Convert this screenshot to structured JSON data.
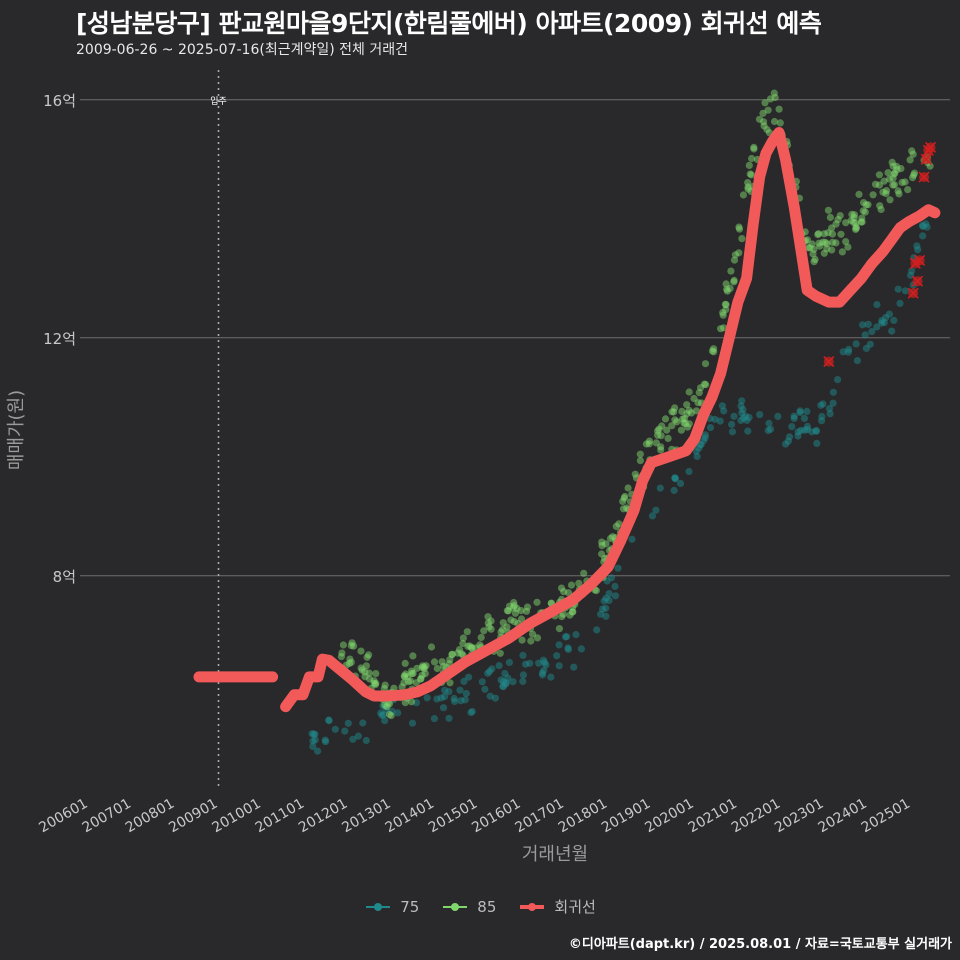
{
  "header": {
    "title": "[성남분당구] 판교원마을9단지(한림풀에버) 아파트(2009) 회귀선 예측",
    "subtitle": "2009-06-26 ~ 2025-07-16(최근계약일) 전체 거래건"
  },
  "footer": {
    "source": "©디아파트(dapt.kr) / 2025.08.01 / 자료=국토교통부 실거래가"
  },
  "colors": {
    "s75": "#1f8a8c",
    "s85": "#7fd66d",
    "regression": "#f25a5a",
    "cancelled": "#d11f1f",
    "grid": "#6e6e6e",
    "bg": "#29282a"
  },
  "chart_data": {
    "type": "scatter",
    "title": "[성남분당구] 판교원마을9단지(한림풀에버) 아파트(2009) 회귀선 예측",
    "xlabel": "거래년월",
    "ylabel": "매매가(원)",
    "xlim": [
      2005.8,
      2025.9
    ],
    "ylim": [
      4.4,
      16.5
    ],
    "x_ticks": [
      2006,
      2007,
      2008,
      2009,
      2010,
      2011,
      2012,
      2013,
      2014,
      2015,
      2016,
      2017,
      2018,
      2019,
      2020,
      2021,
      2022,
      2023,
      2024,
      2025
    ],
    "x_tick_labels": [
      "200601",
      "200701",
      "200801",
      "200901",
      "201001",
      "201101",
      "201201",
      "201301",
      "201401",
      "201501",
      "201601",
      "201701",
      "201801",
      "201901",
      "202001",
      "202101",
      "202201",
      "202301",
      "202401",
      "202501"
    ],
    "y_ticks": [
      8,
      12,
      16
    ],
    "y_tick_labels": [
      "8억",
      "12억",
      "16억"
    ],
    "annotation": {
      "label": "입주",
      "x": 2009.0
    },
    "legend": [
      "75",
      "85",
      "회귀선"
    ],
    "series": [
      {
        "name": "75",
        "anchors": [
          [
            2011.1,
            5.3
          ],
          [
            2012.8,
            5.6
          ],
          [
            2013.5,
            5.8
          ],
          [
            2014.5,
            5.95
          ],
          [
            2015.5,
            6.2
          ],
          [
            2016.5,
            6.55
          ],
          [
            2017.5,
            6.95
          ],
          [
            2017.95,
            7.45
          ],
          [
            2018.4,
            8.4
          ],
          [
            2019.0,
            9.0
          ],
          [
            2019.5,
            9.5
          ],
          [
            2020.0,
            10.0
          ],
          [
            2020.5,
            10.7
          ],
          [
            2022.9,
            10.5
          ],
          [
            2023.5,
            11.8
          ],
          [
            2024.0,
            12.0
          ],
          [
            2024.5,
            12.4
          ],
          [
            2025.0,
            13.0
          ],
          [
            2025.4,
            13.9
          ]
        ],
        "spread": 0.42,
        "count": 210
      },
      {
        "name": "85",
        "anchors": [
          [
            2011.8,
            6.85
          ],
          [
            2012.4,
            6.4
          ],
          [
            2012.9,
            6.0
          ],
          [
            2013.5,
            6.3
          ],
          [
            2014.2,
            6.55
          ],
          [
            2015.0,
            6.85
          ],
          [
            2015.5,
            7.1
          ],
          [
            2016.2,
            7.3
          ],
          [
            2017.0,
            7.5
          ],
          [
            2017.5,
            7.8
          ],
          [
            2018.0,
            8.4
          ],
          [
            2018.5,
            9.4
          ],
          [
            2019.0,
            10.2
          ],
          [
            2019.5,
            10.4
          ],
          [
            2020.0,
            10.9
          ],
          [
            2020.3,
            11.4
          ],
          [
            2020.6,
            12.2
          ],
          [
            2020.9,
            13.2
          ],
          [
            2021.3,
            14.8
          ],
          [
            2021.7,
            15.8
          ],
          [
            2021.9,
            15.9
          ],
          [
            2022.3,
            14.4
          ],
          [
            2022.7,
            13.4
          ],
          [
            2023.0,
            13.7
          ],
          [
            2023.5,
            13.9
          ],
          [
            2024.0,
            14.2
          ],
          [
            2024.5,
            14.6
          ],
          [
            2025.2,
            14.9
          ],
          [
            2025.45,
            14.9
          ]
        ],
        "spread": 0.45,
        "count": 420
      },
      {
        "name": "회귀선",
        "points": [
          [
            2008.55,
            6.3
          ],
          [
            2010.25,
            6.3
          ],
          [
            null,
            null
          ],
          [
            2010.55,
            5.8
          ],
          [
            2010.75,
            6.0
          ],
          [
            2010.95,
            6.0
          ],
          [
            2011.1,
            6.3
          ],
          [
            2011.3,
            6.3
          ],
          [
            2011.4,
            6.6
          ],
          [
            2011.55,
            6.58
          ],
          [
            2011.85,
            6.4
          ],
          [
            2012.1,
            6.25
          ],
          [
            2012.4,
            6.05
          ],
          [
            2012.6,
            5.98
          ],
          [
            2012.9,
            5.98
          ],
          [
            2013.3,
            6.0
          ],
          [
            2013.6,
            6.05
          ],
          [
            2013.9,
            6.15
          ],
          [
            2014.3,
            6.35
          ],
          [
            2014.7,
            6.55
          ],
          [
            2015.2,
            6.75
          ],
          [
            2015.7,
            6.95
          ],
          [
            2016.2,
            7.2
          ],
          [
            2016.7,
            7.4
          ],
          [
            2017.2,
            7.6
          ],
          [
            2017.6,
            7.85
          ],
          [
            2018.0,
            8.15
          ],
          [
            2018.3,
            8.6
          ],
          [
            2018.6,
            9.1
          ],
          [
            2018.8,
            9.6
          ],
          [
            2019.0,
            9.9
          ],
          [
            2019.4,
            10.0
          ],
          [
            2019.8,
            10.1
          ],
          [
            2020.0,
            10.3
          ],
          [
            2020.2,
            10.7
          ],
          [
            2020.4,
            11.0
          ],
          [
            2020.6,
            11.4
          ],
          [
            2020.8,
            12.0
          ],
          [
            2021.0,
            12.6
          ],
          [
            2021.2,
            13.0
          ],
          [
            2021.35,
            13.9
          ],
          [
            2021.5,
            14.7
          ],
          [
            2021.65,
            15.1
          ],
          [
            2021.8,
            15.3
          ],
          [
            2021.95,
            15.45
          ],
          [
            2022.1,
            15.0
          ],
          [
            2022.3,
            14.2
          ],
          [
            2022.45,
            13.5
          ],
          [
            2022.6,
            12.8
          ],
          [
            2022.8,
            12.7
          ],
          [
            2023.1,
            12.6
          ],
          [
            2023.35,
            12.6
          ],
          [
            2023.6,
            12.8
          ],
          [
            2023.85,
            13.0
          ],
          [
            2024.1,
            13.25
          ],
          [
            2024.35,
            13.45
          ],
          [
            2024.55,
            13.65
          ],
          [
            2024.75,
            13.85
          ],
          [
            2024.95,
            13.95
          ],
          [
            2025.2,
            14.05
          ],
          [
            2025.4,
            14.15
          ],
          [
            2025.55,
            14.1
          ]
        ]
      }
    ],
    "cancelled": [
      [
        2023.1,
        11.6
      ],
      [
        2025.05,
        12.75
      ],
      [
        2025.15,
        12.95
      ],
      [
        2025.1,
        13.25
      ],
      [
        2025.2,
        13.3
      ],
      [
        2025.3,
        14.7
      ],
      [
        2025.35,
        15.0
      ],
      [
        2025.4,
        15.15
      ],
      [
        2025.45,
        15.2
      ]
    ]
  }
}
